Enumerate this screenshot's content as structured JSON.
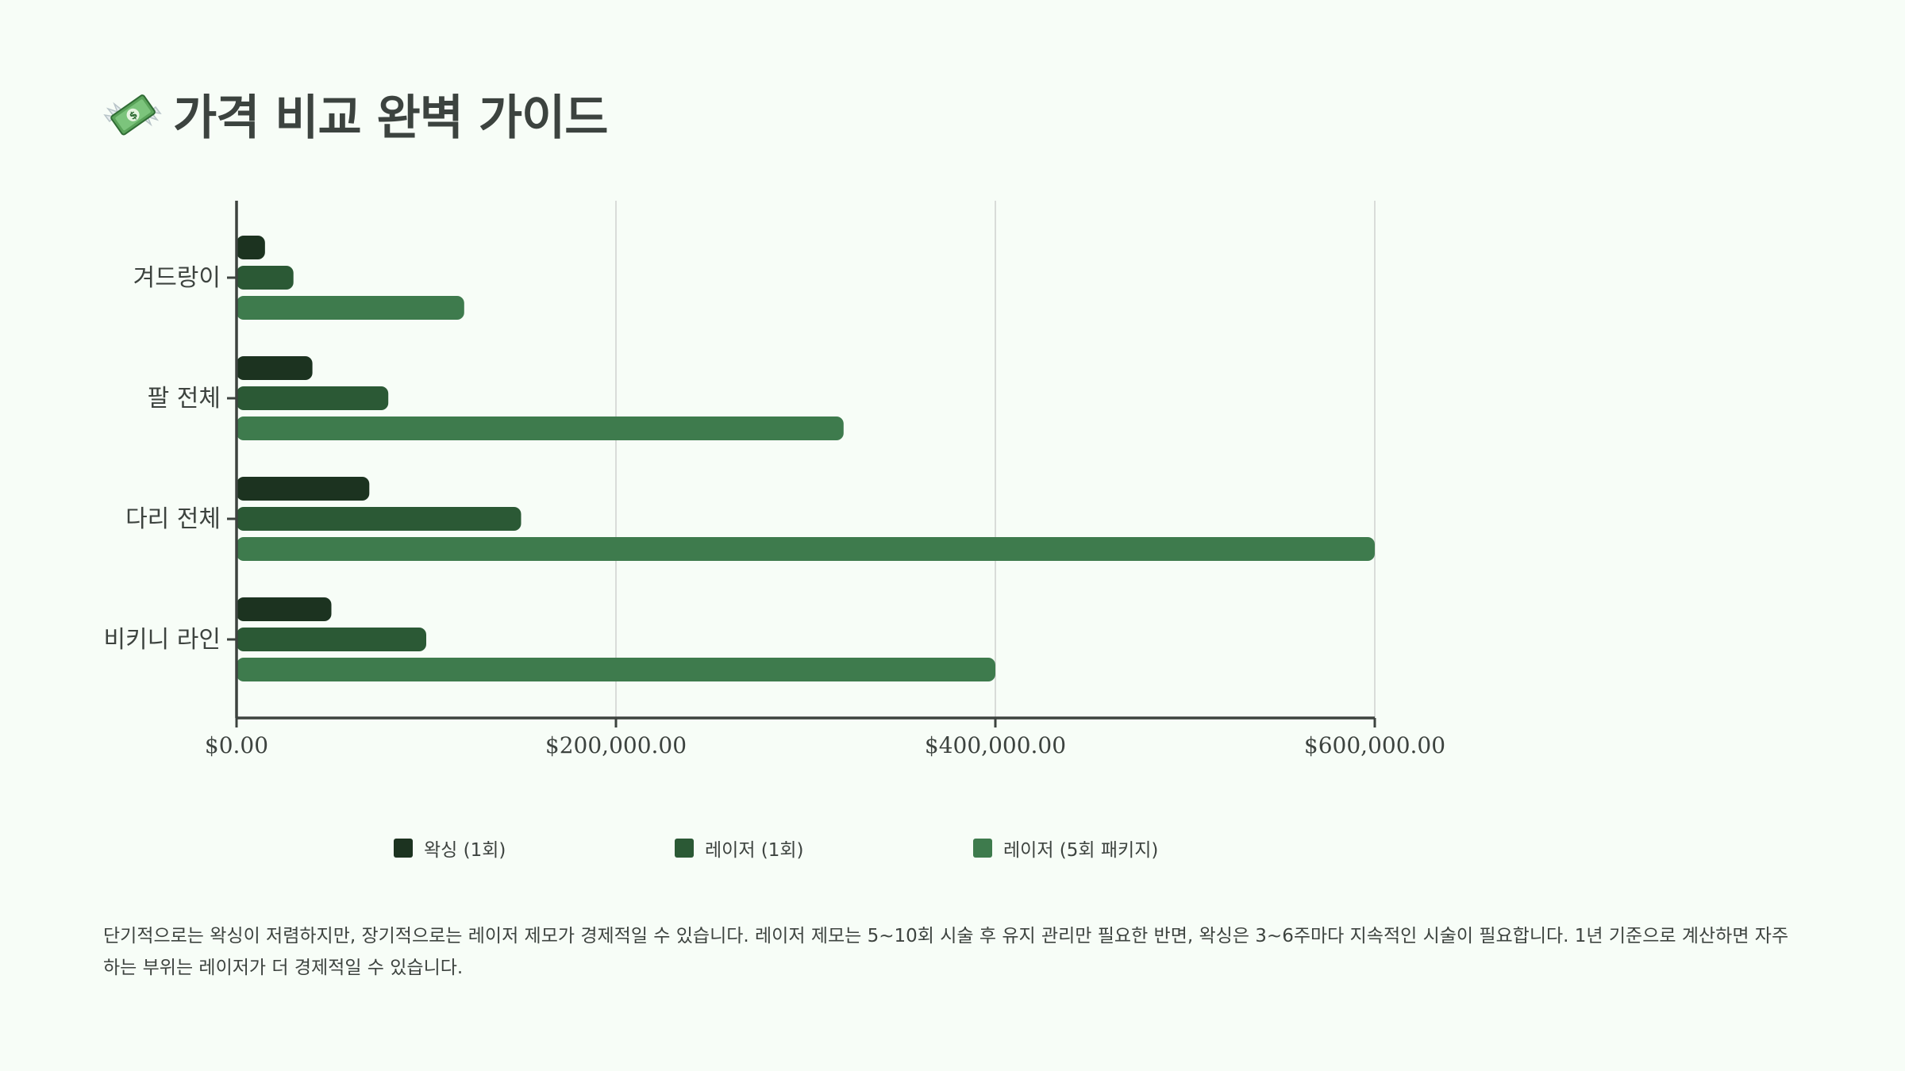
{
  "page": {
    "title": "가격 비교 완벽 가이드",
    "title_icon": "money-with-wings-icon",
    "footnote": "단기적으로는 왁싱이 저렴하지만, 장기적으로는 레이저 제모가 경제적일 수 있습니다. 레이저 제모는 5~10회 시술 후 유지 관리만 필요한 반면, 왁싱은 3~6주마다 지속적인 시술이 필요합니다. 1년 기준으로 계산하면 자주 하는 부위는 레이저가 더 경제적일 수 있습니다."
  },
  "colors": {
    "background": "#f7fdf7",
    "text": "#3d433f",
    "gridline": "#d9dcd9",
    "axis": "#3d433f"
  },
  "chart_data": {
    "type": "bar",
    "orientation": "horizontal",
    "categories": [
      "겨드랑이",
      "팔 전체",
      "다리 전체",
      "비키니 라인"
    ],
    "series": [
      {
        "name": "왁싱 (1회)",
        "color": "#1c3320",
        "values": [
          15000,
          40000,
          70000,
          50000
        ]
      },
      {
        "name": "레이저 (1회)",
        "color": "#2b5935",
        "values": [
          30000,
          80000,
          150000,
          100000
        ]
      },
      {
        "name": "레이저 (5회 패키지)",
        "color": "#3e7b4d",
        "values": [
          120000,
          320000,
          600000,
          400000
        ]
      }
    ],
    "xlim": [
      0,
      600000
    ],
    "x_ticks": [
      0,
      200000,
      400000,
      600000
    ],
    "x_tick_labels": [
      "$0.00",
      "$200,000.00",
      "$400,000.00",
      "$600,000.00"
    ],
    "grid": "vertical",
    "legend_position": "bottom"
  }
}
